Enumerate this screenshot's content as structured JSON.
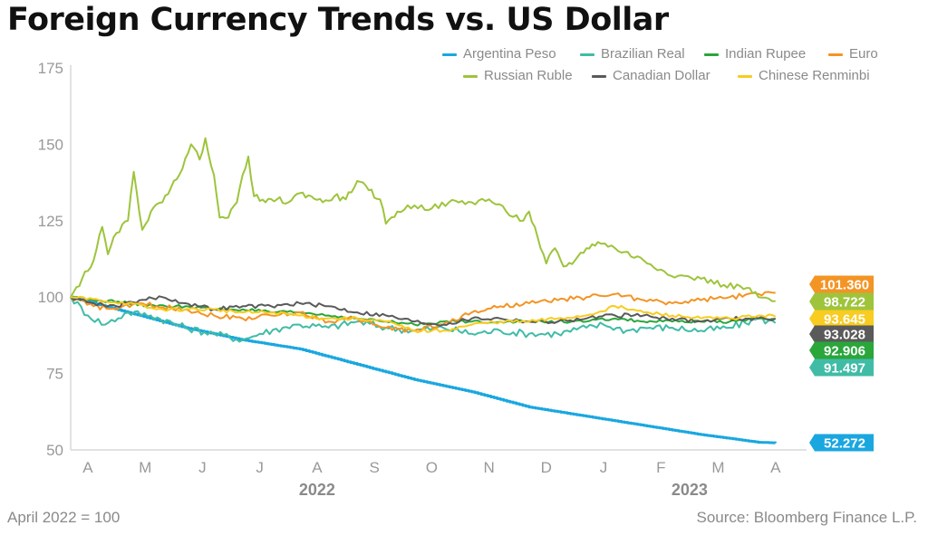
{
  "title": "Foreign Currency Trends vs. US Dollar",
  "footnote": "April 2022 = 100",
  "source": "Source: Bloomberg Finance L.P.",
  "chart_data": {
    "type": "line",
    "title": "Foreign Currency Trends vs. US Dollar",
    "xlabel": "",
    "ylabel": "",
    "ylim": [
      50,
      175
    ],
    "yticks": [
      50,
      75,
      100,
      125,
      150,
      175
    ],
    "xlim": [
      0,
      13
    ],
    "x_ticks": [
      {
        "label": "A",
        "x": 0.3
      },
      {
        "label": "M",
        "x": 1.3
      },
      {
        "label": "J",
        "x": 2.3
      },
      {
        "label": "J",
        "x": 3.3
      },
      {
        "label": "A",
        "x": 4.3
      },
      {
        "label": "S",
        "x": 5.3
      },
      {
        "label": "O",
        "x": 6.3
      },
      {
        "label": "N",
        "x": 7.3
      },
      {
        "label": "D",
        "x": 8.3
      },
      {
        "label": "J",
        "x": 9.3
      },
      {
        "label": "F",
        "x": 10.3
      },
      {
        "label": "M",
        "x": 11.3
      },
      {
        "label": "A",
        "x": 12.3
      }
    ],
    "year_labels": [
      {
        "label": "2022",
        "x": 4.3
      },
      {
        "label": "2023",
        "x": 10.8
      }
    ],
    "series": [
      {
        "name": "Argentina Peso",
        "color": "#1aa7e0",
        "end_value": "52.272",
        "points": [
          [
            0,
            100
          ],
          [
            1,
            95
          ],
          [
            2,
            90
          ],
          [
            3,
            86
          ],
          [
            4,
            83
          ],
          [
            5,
            78
          ],
          [
            6,
            73
          ],
          [
            7,
            69
          ],
          [
            8,
            64
          ],
          [
            9,
            61
          ],
          [
            10,
            58
          ],
          [
            11,
            55
          ],
          [
            12,
            52.5
          ],
          [
            12.3,
            52.3
          ]
        ]
      },
      {
        "name": "Brazilian Real",
        "color": "#40bca6",
        "end_value": "91.497",
        "points": [
          [
            0,
            100
          ],
          [
            0.3,
            94
          ],
          [
            0.6,
            91
          ],
          [
            1,
            95
          ],
          [
            1.4,
            94
          ],
          [
            2,
            90
          ],
          [
            2.5,
            88
          ],
          [
            3,
            86
          ],
          [
            3.3,
            88
          ],
          [
            3.7,
            90
          ],
          [
            4,
            91
          ],
          [
            4.5,
            90
          ],
          [
            5,
            92
          ],
          [
            5.5,
            90
          ],
          [
            6,
            89
          ],
          [
            6.5,
            90
          ],
          [
            7,
            88
          ],
          [
            7.5,
            89
          ],
          [
            8,
            88
          ],
          [
            8.5,
            88
          ],
          [
            9,
            90
          ],
          [
            9.3,
            91
          ],
          [
            9.7,
            89
          ],
          [
            10,
            90
          ],
          [
            10.5,
            90
          ],
          [
            11,
            89
          ],
          [
            11.5,
            90
          ],
          [
            12,
            93
          ],
          [
            12.3,
            91.5
          ]
        ]
      },
      {
        "name": "Indian Rupee",
        "color": "#2aa63a",
        "end_value": "92.906",
        "points": [
          [
            0,
            100
          ],
          [
            0.5,
            99
          ],
          [
            1,
            98
          ],
          [
            1.5,
            97
          ],
          [
            2,
            97
          ],
          [
            2.5,
            96
          ],
          [
            3,
            96
          ],
          [
            3.5,
            95
          ],
          [
            4,
            95
          ],
          [
            4.5,
            94
          ],
          [
            5,
            93
          ],
          [
            5.5,
            92
          ],
          [
            6,
            91
          ],
          [
            6.5,
            92
          ],
          [
            7,
            92
          ],
          [
            7.5,
            92
          ],
          [
            8,
            92
          ],
          [
            8.5,
            92
          ],
          [
            9,
            92
          ],
          [
            9.5,
            93
          ],
          [
            10,
            92
          ],
          [
            10.5,
            92
          ],
          [
            11,
            92
          ],
          [
            11.5,
            92
          ],
          [
            12,
            93
          ],
          [
            12.3,
            92.9
          ]
        ]
      },
      {
        "name": "Euro",
        "color": "#f39424",
        "end_value": "101.360",
        "points": [
          [
            0,
            100
          ],
          [
            0.4,
            97
          ],
          [
            0.8,
            96
          ],
          [
            1.2,
            98
          ],
          [
            1.5,
            97
          ],
          [
            2,
            96
          ],
          [
            2.5,
            94
          ],
          [
            3,
            93
          ],
          [
            3.5,
            94
          ],
          [
            4,
            95
          ],
          [
            4.5,
            92
          ],
          [
            5,
            93
          ],
          [
            5.5,
            90
          ],
          [
            6,
            89
          ],
          [
            6.5,
            91
          ],
          [
            7,
            95
          ],
          [
            7.5,
            97
          ],
          [
            8,
            98
          ],
          [
            8.5,
            99
          ],
          [
            9,
            100
          ],
          [
            9.5,
            101
          ],
          [
            10,
            99
          ],
          [
            10.5,
            98
          ],
          [
            11,
            99
          ],
          [
            11.5,
            100
          ],
          [
            12,
            101
          ],
          [
            12.3,
            101.4
          ]
        ]
      },
      {
        "name": "Russian Ruble",
        "color": "#9ec43c",
        "end_value": "98.722",
        "points": [
          [
            0,
            100
          ],
          [
            0.2,
            106
          ],
          [
            0.4,
            112
          ],
          [
            0.55,
            123
          ],
          [
            0.65,
            114
          ],
          [
            0.8,
            121
          ],
          [
            1,
            125
          ],
          [
            1.1,
            141
          ],
          [
            1.25,
            122
          ],
          [
            1.4,
            128
          ],
          [
            1.6,
            131
          ],
          [
            1.8,
            138
          ],
          [
            1.95,
            142
          ],
          [
            2.1,
            150
          ],
          [
            2.25,
            145
          ],
          [
            2.35,
            152
          ],
          [
            2.5,
            140
          ],
          [
            2.6,
            126
          ],
          [
            2.75,
            126
          ],
          [
            2.9,
            131
          ],
          [
            3,
            140
          ],
          [
            3.1,
            146
          ],
          [
            3.2,
            133
          ],
          [
            3.4,
            131
          ],
          [
            3.6,
            132
          ],
          [
            3.8,
            131
          ],
          [
            4,
            134
          ],
          [
            4.2,
            133
          ],
          [
            4.4,
            131
          ],
          [
            4.6,
            133
          ],
          [
            4.8,
            132
          ],
          [
            5,
            138
          ],
          [
            5.2,
            135
          ],
          [
            5.4,
            132
          ],
          [
            5.5,
            124
          ],
          [
            5.7,
            128
          ],
          [
            6,
            130
          ],
          [
            6.3,
            129
          ],
          [
            6.6,
            131
          ],
          [
            7,
            131
          ],
          [
            7.3,
            132
          ],
          [
            7.6,
            128
          ],
          [
            7.9,
            125
          ],
          [
            8,
            128
          ],
          [
            8.2,
            116
          ],
          [
            8.3,
            111
          ],
          [
            8.45,
            116
          ],
          [
            8.6,
            110
          ],
          [
            8.8,
            112
          ],
          [
            9,
            116
          ],
          [
            9.2,
            118
          ],
          [
            9.5,
            116
          ],
          [
            10,
            112
          ],
          [
            10.3,
            109
          ],
          [
            10.6,
            107
          ],
          [
            11,
            106
          ],
          [
            11.4,
            104
          ],
          [
            11.8,
            103
          ],
          [
            12,
            100
          ],
          [
            12.3,
            98.7
          ]
        ]
      },
      {
        "name": "Canadian Dollar",
        "color": "#5a5a5a",
        "end_value": "93.028",
        "points": [
          [
            0,
            100
          ],
          [
            0.4,
            98
          ],
          [
            0.8,
            97
          ],
          [
            1.2,
            99
          ],
          [
            1.6,
            100
          ],
          [
            2,
            98
          ],
          [
            2.5,
            96
          ],
          [
            3,
            97
          ],
          [
            3.5,
            97
          ],
          [
            4,
            98
          ],
          [
            4.5,
            97
          ],
          [
            5,
            95
          ],
          [
            5.5,
            94
          ],
          [
            6,
            92
          ],
          [
            6.5,
            91
          ],
          [
            7,
            93
          ],
          [
            7.5,
            93
          ],
          [
            8,
            92
          ],
          [
            8.5,
            92
          ],
          [
            9,
            93
          ],
          [
            9.5,
            94
          ],
          [
            10,
            94
          ],
          [
            10.5,
            93
          ],
          [
            11,
            92
          ],
          [
            11.5,
            93
          ],
          [
            12,
            93
          ],
          [
            12.3,
            93
          ]
        ]
      },
      {
        "name": "Chinese Renminbi",
        "color": "#f8cc20",
        "end_value": "93.645",
        "points": [
          [
            0,
            100
          ],
          [
            0.5,
            99
          ],
          [
            1,
            98
          ],
          [
            1.5,
            96
          ],
          [
            2,
            96
          ],
          [
            2.5,
            96
          ],
          [
            3,
            95
          ],
          [
            3.5,
            95
          ],
          [
            4,
            94
          ],
          [
            4.5,
            93
          ],
          [
            5,
            93
          ],
          [
            5.5,
            92
          ],
          [
            6,
            89
          ],
          [
            6.5,
            89
          ],
          [
            7,
            91
          ],
          [
            7.5,
            92
          ],
          [
            8,
            92
          ],
          [
            8.5,
            93
          ],
          [
            9,
            94
          ],
          [
            9.5,
            97
          ],
          [
            10,
            95
          ],
          [
            10.5,
            94
          ],
          [
            11,
            93
          ],
          [
            11.5,
            93
          ],
          [
            12,
            94
          ],
          [
            12.3,
            93.6
          ]
        ]
      }
    ]
  }
}
